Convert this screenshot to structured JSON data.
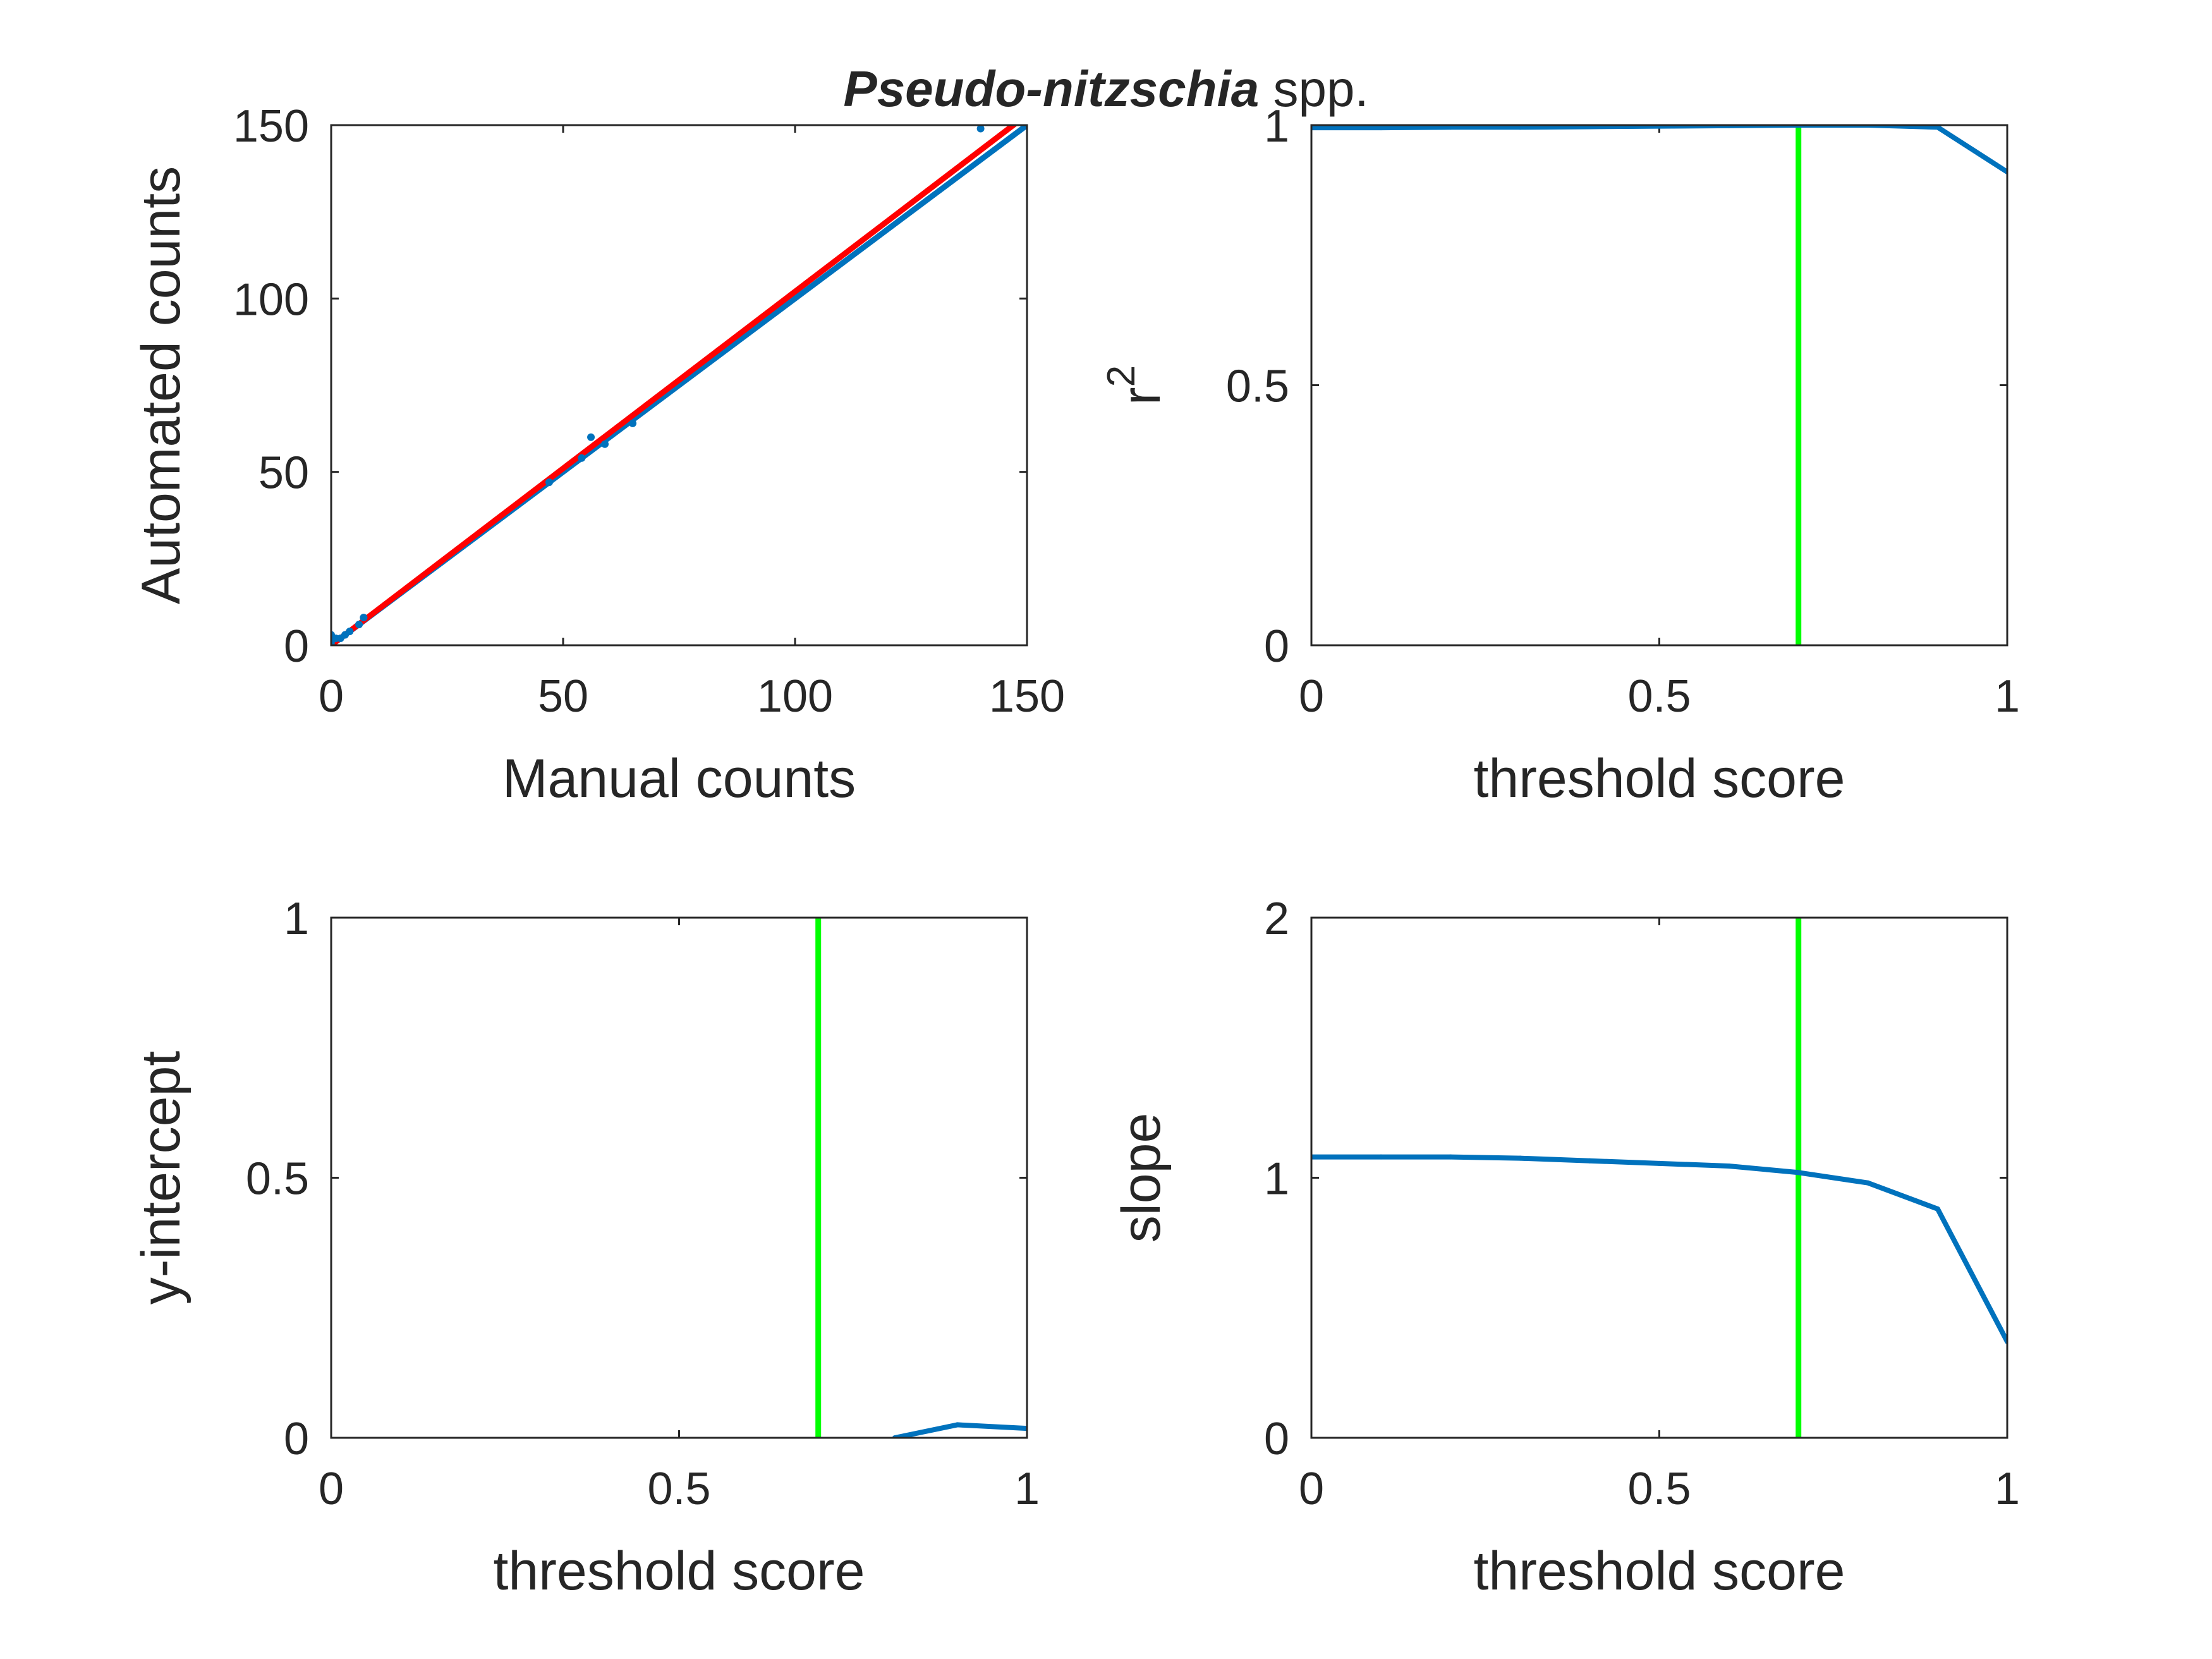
{
  "figure": {
    "title_italic": "Pseudo-nitzschia",
    "title_rest": " spp.",
    "colors": {
      "data": "#0072BD",
      "fit": "#FF0000",
      "threshold": "#00FF00",
      "axis": "#262626"
    }
  },
  "chart_data": [
    {
      "type": "scatter",
      "xlabel": "Manual counts",
      "ylabel": "Automated counts",
      "xlim": [
        0,
        150
      ],
      "ylim": [
        0,
        150
      ],
      "xticks": [
        "0",
        "50",
        "100",
        "150"
      ],
      "yticks": [
        "0",
        "50",
        "100",
        "150"
      ],
      "points": [
        [
          0,
          0
        ],
        [
          0,
          1
        ],
        [
          0,
          3
        ],
        [
          1,
          2
        ],
        [
          2,
          2
        ],
        [
          3,
          3
        ],
        [
          4,
          4
        ],
        [
          6,
          6
        ],
        [
          7,
          8
        ],
        [
          47,
          47
        ],
        [
          54,
          54
        ],
        [
          56,
          60
        ],
        [
          59,
          58
        ],
        [
          65,
          64
        ],
        [
          140,
          149
        ]
      ],
      "lines": [
        {
          "kind": "one-to-one",
          "color": "#0072BD",
          "x": [
            0,
            150
          ],
          "y": [
            0,
            150
          ]
        },
        {
          "kind": "regression",
          "color": "#FF0000",
          "x": [
            0,
            150
          ],
          "y": [
            0,
            153
          ]
        }
      ]
    },
    {
      "type": "line",
      "xlabel": "threshold score",
      "ylabel": "r",
      "ylabel_sup": "2",
      "xlim": [
        0,
        1
      ],
      "ylim": [
        0,
        1
      ],
      "xticks": [
        "0",
        "0.5",
        "1"
      ],
      "yticks": [
        "0",
        "0.5",
        "1"
      ],
      "x": [
        0,
        0.1,
        0.2,
        0.3,
        0.4,
        0.5,
        0.6,
        0.7,
        0.8,
        0.9,
        1.0
      ],
      "y": [
        0.995,
        0.995,
        0.996,
        0.996,
        0.997,
        0.998,
        0.999,
        1.0,
        1.0,
        0.996,
        0.91
      ],
      "threshold": 0.7
    },
    {
      "type": "line",
      "xlabel": "threshold score",
      "ylabel": "y-intercept",
      "xlim": [
        0,
        1
      ],
      "ylim": [
        0,
        1
      ],
      "xticks": [
        "0",
        "0.5",
        "1"
      ],
      "yticks": [
        "0",
        "0.5",
        "1"
      ],
      "x": [
        0.81,
        0.9,
        1.0
      ],
      "y": [
        0.0,
        0.025,
        0.018
      ],
      "threshold": 0.7
    },
    {
      "type": "line",
      "xlabel": "threshold score",
      "ylabel": "slope",
      "xlim": [
        0,
        1
      ],
      "ylim": [
        0,
        2
      ],
      "xticks": [
        "0",
        "0.5",
        "1"
      ],
      "yticks": [
        "0",
        "1",
        "2"
      ],
      "x": [
        0,
        0.1,
        0.2,
        0.3,
        0.4,
        0.5,
        0.6,
        0.7,
        0.8,
        0.9,
        1.0
      ],
      "y": [
        1.08,
        1.08,
        1.08,
        1.075,
        1.065,
        1.055,
        1.045,
        1.02,
        0.98,
        0.88,
        0.37
      ],
      "threshold": 0.7
    }
  ]
}
